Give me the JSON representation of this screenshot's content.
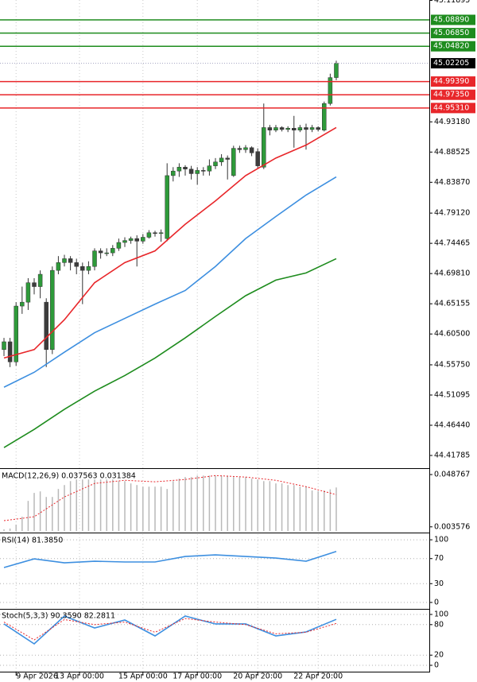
{
  "chart_data": [
    {
      "type": "candlestick",
      "xlim": [
        -0.66,
        70.4
      ],
      "xticks": [
        {
          "value": 2,
          "label": "9 Apr 2026"
        },
        {
          "value": 12.5,
          "label": "13 Apr 00:00"
        },
        {
          "value": 23,
          "label": "15 Apr 00:00"
        },
        {
          "value": 32,
          "label": "17 Apr 00:00"
        },
        {
          "value": 42,
          "label": "20 Apr 20:00"
        },
        {
          "value": 52,
          "label": "22 Apr 20:00"
        }
      ],
      "ylim": [
        44.3995,
        45.1195
      ],
      "yticks": [
        45.11895,
        {
          "value": 44.9318,
          "label": "44.93180"
        },
        44.88525,
        {
          "value": 44.8387,
          "label": "44.83870"
        },
        {
          "value": 44.7912,
          "label": "44.79120"
        },
        44.74465,
        {
          "value": 44.6981,
          "label": "44.69810"
        },
        44.65155,
        {
          "value": 44.605,
          "label": "44.60500"
        },
        {
          "value": 44.5575,
          "label": "44.55750"
        },
        44.51095,
        {
          "value": 44.4644,
          "label": "44.46440"
        },
        44.41785
      ],
      "open": [
        44.581,
        44.593,
        44.562,
        44.648,
        44.654,
        44.684,
        44.678,
        44.654,
        44.581,
        44.703,
        44.715,
        44.721,
        44.715,
        44.709,
        44.703,
        44.709,
        44.733,
        44.73,
        44.73,
        44.737,
        44.746,
        44.749,
        44.752,
        44.748,
        44.754,
        44.761,
        44.76,
        44.752,
        44.849,
        44.856,
        44.862,
        44.859,
        44.852,
        44.857,
        44.856,
        44.864,
        44.87,
        44.876,
        44.849,
        44.891,
        44.889,
        44.892,
        44.886,
        44.862,
        44.923,
        44.919,
        44.923,
        44.92,
        44.922,
        44.919,
        44.923,
        44.92,
        44.923,
        44.919,
        44.96,
        45.0
      ],
      "high": [
        44.599,
        44.599,
        44.654,
        44.678,
        44.691,
        44.691,
        44.703,
        44.66,
        44.709,
        44.725,
        44.727,
        44.725,
        44.721,
        44.715,
        44.717,
        44.737,
        44.737,
        44.737,
        44.742,
        44.752,
        44.754,
        44.755,
        44.757,
        44.759,
        44.765,
        44.764,
        44.766,
        44.868,
        44.862,
        44.868,
        44.865,
        44.864,
        44.862,
        44.862,
        44.874,
        44.876,
        44.882,
        44.88,
        44.895,
        44.895,
        44.896,
        44.894,
        44.891,
        44.96,
        44.927,
        44.927,
        44.925,
        44.925,
        44.941,
        44.927,
        44.929,
        44.927,
        44.925,
        44.963,
        45.006,
        45.026
      ],
      "low": [
        44.571,
        44.554,
        44.556,
        44.636,
        44.642,
        44.666,
        44.66,
        44.554,
        44.574,
        44.697,
        44.709,
        44.703,
        44.697,
        44.651,
        44.697,
        44.703,
        44.721,
        44.725,
        44.725,
        44.733,
        44.739,
        44.744,
        44.709,
        44.744,
        44.752,
        44.755,
        44.747,
        44.748,
        44.84,
        44.847,
        44.849,
        44.843,
        44.835,
        44.849,
        44.849,
        44.859,
        44.864,
        44.843,
        44.847,
        44.884,
        44.884,
        44.879,
        44.859,
        44.859,
        44.911,
        44.916,
        44.917,
        44.916,
        44.892,
        44.916,
        44.889,
        44.916,
        44.917,
        44.917,
        44.957,
        44.996
      ],
      "close": [
        44.593,
        44.562,
        44.648,
        44.654,
        44.684,
        44.678,
        44.697,
        44.581,
        44.703,
        44.715,
        44.721,
        44.715,
        44.709,
        44.703,
        44.709,
        44.733,
        44.73,
        44.73,
        44.737,
        44.746,
        44.749,
        44.752,
        44.748,
        44.754,
        44.761,
        44.76,
        44.761,
        44.849,
        44.856,
        44.862,
        44.859,
        44.852,
        44.857,
        44.856,
        44.864,
        44.87,
        44.876,
        44.874,
        44.891,
        44.889,
        44.892,
        44.884,
        44.864,
        44.923,
        44.919,
        44.923,
        44.92,
        44.922,
        44.919,
        44.923,
        44.92,
        44.923,
        44.92,
        44.96,
        45.0,
        45.022
      ],
      "bull_color": "#2e9a3a",
      "bear_color": "#3c3c3c",
      "series": [
        {
          "color": "#e8262a",
          "x": [
            0,
            5,
            10,
            15,
            20,
            25,
            30,
            35,
            40,
            45,
            50,
            55
          ],
          "values": [
            44.568,
            44.581,
            44.627,
            44.684,
            44.715,
            44.733,
            44.774,
            44.81,
            44.849,
            44.876,
            44.896,
            44.923
          ]
        },
        {
          "color": "#3d8fe0",
          "x": [
            0,
            5,
            10,
            15,
            20,
            25,
            30,
            35,
            40,
            45,
            50,
            55
          ],
          "values": [
            44.523,
            44.546,
            44.577,
            44.607,
            44.629,
            44.651,
            44.672,
            44.709,
            44.752,
            44.786,
            44.819,
            44.847
          ]
        },
        {
          "color": "#1e8c1e",
          "x": [
            0,
            5,
            10,
            15,
            20,
            25,
            30,
            35,
            40,
            45,
            50,
            55
          ],
          "values": [
            44.43,
            44.458,
            44.489,
            44.517,
            44.541,
            44.568,
            44.599,
            44.632,
            44.664,
            44.688,
            44.699,
            44.721
          ]
        }
      ],
      "levels": [
        {
          "value": 45.0889,
          "label": "45.08890",
          "color": "#1e8c1e"
        },
        {
          "value": 45.0685,
          "label": "45.06850",
          "color": "#1e8c1e"
        },
        {
          "value": 45.0482,
          "label": "45.04820",
          "color": "#1e8c1e"
        },
        {
          "value": 44.9939,
          "label": "44.99390",
          "color": "#e8262a"
        },
        {
          "value": 44.9735,
          "label": "44.97350",
          "color": "#e8262a"
        },
        {
          "value": 44.9531,
          "label": "44.95310",
          "color": "#e8262a"
        }
      ],
      "last_price": {
        "value": 45.02205,
        "label": "45.02205"
      }
    },
    {
      "type": "bar",
      "title": "MACD(12,26,9) 0.037563 0.031384",
      "ylim": [
        0,
        0.0529
      ],
      "yticks": [
        0.048767,
        0.003576
      ],
      "color": "#b9b9b9",
      "values": [
        0.0014,
        0.0021,
        0.0055,
        0.0123,
        0.026,
        0.0329,
        0.0342,
        0.0294,
        0.0294,
        0.0363,
        0.0397,
        0.0431,
        0.0445,
        0.0445,
        0.0445,
        0.0445,
        0.0445,
        0.0445,
        0.0445,
        0.0431,
        0.0431,
        0.0411,
        0.0397,
        0.0383,
        0.0383,
        0.0383,
        0.0383,
        0.0363,
        0.0431,
        0.0452,
        0.0466,
        0.0466,
        0.0479,
        0.0479,
        0.0479,
        0.0479,
        0.0479,
        0.0479,
        0.0466,
        0.0466,
        0.0466,
        0.0452,
        0.0445,
        0.0431,
        0.0431,
        0.0411,
        0.0411,
        0.0397,
        0.0397,
        0.0383,
        0.0383,
        0.035,
        0.0345,
        0.035,
        0.036,
        0.0376
      ],
      "series": [
        {
          "color": "#e8262a",
          "dash": true,
          "x": [
            0,
            5,
            10,
            15,
            20,
            25,
            30,
            35,
            40,
            45,
            50,
            55
          ],
          "values": [
            0.0089,
            0.0123,
            0.0294,
            0.0411,
            0.0438,
            0.0425,
            0.0445,
            0.0479,
            0.0466,
            0.0438,
            0.0383,
            0.0314
          ]
        }
      ]
    },
    {
      "type": "line",
      "title": "RSI(14) 81.3850",
      "ylim": [
        -9,
        109
      ],
      "yticks": [
        100,
        70,
        30,
        0
      ],
      "grid": true,
      "series": [
        {
          "color": "#3d8fe0",
          "x": [
            0,
            5,
            10,
            15,
            20,
            25,
            30,
            35,
            40,
            45,
            50,
            55
          ],
          "values": [
            55.7,
            69.6,
            63.3,
            65.8,
            64.6,
            64.6,
            73.4,
            75.9,
            73.4,
            70.9,
            65.8,
            81.385
          ]
        }
      ]
    },
    {
      "type": "line",
      "title": "Stoch(5,3,3) 90.3590 82.2811",
      "ylim": [
        -12.5,
        109.4
      ],
      "yticks": [
        100,
        80,
        20,
        0
      ],
      "grid": true,
      "series": [
        {
          "color": "#3d8fe0",
          "x": [
            0,
            5,
            10,
            15,
            20,
            25,
            30,
            35,
            40,
            45,
            50,
            55
          ],
          "values": [
            81.3,
            42.2,
            96.9,
            73.4,
            89.1,
            57.8,
            96.9,
            81.3,
            81.3,
            57.8,
            65.6,
            90.359
          ]
        },
        {
          "color": "#e8262a",
          "dash": true,
          "x": [
            0,
            5,
            10,
            15,
            20,
            25,
            30,
            35,
            40,
            45,
            50,
            55
          ],
          "values": [
            85,
            50,
            90,
            80,
            85,
            65,
            92,
            85,
            80,
            62,
            65,
            82.2811
          ]
        }
      ]
    }
  ]
}
